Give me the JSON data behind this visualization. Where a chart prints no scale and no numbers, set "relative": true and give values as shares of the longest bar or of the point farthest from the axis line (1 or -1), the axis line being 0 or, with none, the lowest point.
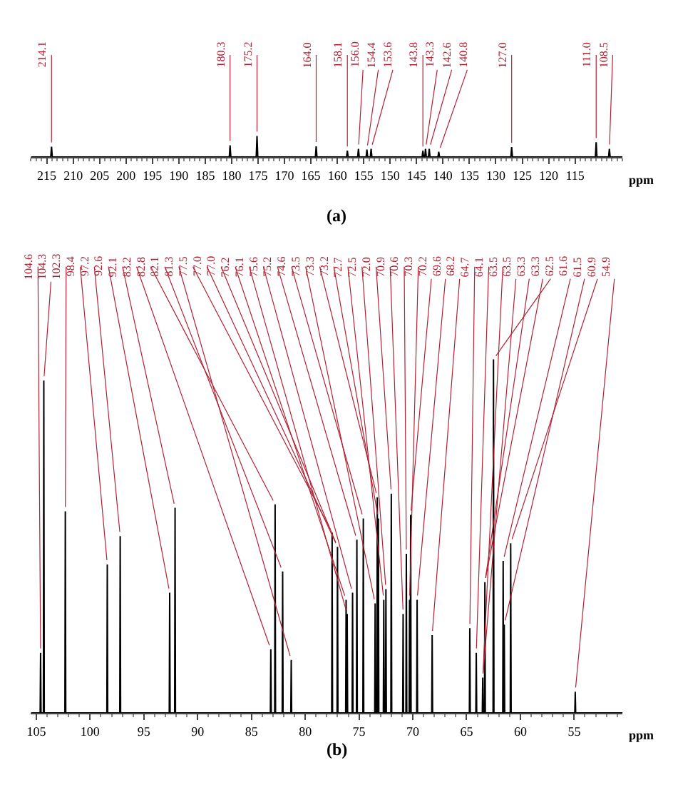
{
  "chart_data": [
    {
      "type": "line",
      "title": "(a)",
      "xlabel": "ppm",
      "relative": true,
      "tick_labels": "x",
      "marker": "none",
      "line_style": "solid",
      "xlim": [
        218,
        106
      ],
      "xticks": [
        215,
        210,
        205,
        200,
        195,
        190,
        185,
        180,
        175,
        170,
        165,
        160,
        155,
        150,
        145,
        140,
        135,
        130,
        125,
        120,
        115
      ],
      "series": [
        {
          "color": "#000000",
          "x": [
            218,
            214.25,
            214.1,
            213.95,
            180.45,
            180.3,
            180.15,
            175.35,
            175.2,
            175.05,
            164.15,
            164.0,
            163.85,
            158.25,
            158.1,
            157.95,
            156.15,
            156.0,
            155.85,
            154.55,
            154.4,
            154.25,
            153.75,
            153.6,
            153.45,
            143.95,
            143.8,
            143.65,
            143.45,
            143.3,
            143.15,
            142.75,
            142.6,
            142.45,
            140.95,
            140.8,
            140.65,
            127.15,
            127.0,
            126.85,
            111.15,
            111.0,
            110.85,
            108.65,
            108.5,
            108.35,
            106
          ],
          "values": [
            0,
            0,
            0.49,
            0,
            0,
            0.56,
            0,
            0,
            1,
            0,
            0,
            0.51,
            0,
            0,
            0.3,
            0,
            0,
            0.39,
            0,
            0,
            0.35,
            0,
            0,
            0.39,
            0,
            0,
            0.3,
            0,
            0,
            0.39,
            0,
            0,
            0.39,
            0,
            0,
            0.25,
            0,
            0,
            0.47,
            0,
            0,
            0.7,
            0,
            0,
            0.39,
            0,
            0
          ]
        }
      ],
      "annotations": [
        {
          "text": "214.1",
          "x": 214.1,
          "y": 0.49
        },
        {
          "text": "180.3",
          "x": 180.3,
          "y": 0.56
        },
        {
          "text": "175.2",
          "x": 175.2,
          "y": 1
        },
        {
          "text": "164.0",
          "x": 164.0,
          "y": 0.51
        },
        {
          "text": "158.1",
          "x": 158.1,
          "y": 0.3
        },
        {
          "text": "156.0",
          "x": 156.0,
          "y": 0.39
        },
        {
          "text": "154.4",
          "x": 154.4,
          "y": 0.35
        },
        {
          "text": "153.6",
          "x": 153.6,
          "y": 0.39
        },
        {
          "text": "143.8",
          "x": 143.8,
          "y": 0.3
        },
        {
          "text": "143.3",
          "x": 143.3,
          "y": 0.39
        },
        {
          "text": "142.6",
          "x": 142.6,
          "y": 0.39
        },
        {
          "text": "140.8",
          "x": 140.8,
          "y": 0.25
        },
        {
          "text": "127.0",
          "x": 127.0,
          "y": 0.47
        },
        {
          "text": "111.0",
          "x": 111.0,
          "y": 0.7
        },
        {
          "text": "108.5",
          "x": 108.5,
          "y": 0.39
        }
      ]
    },
    {
      "type": "line",
      "title": "(b)",
      "xlabel": "ppm",
      "relative": true,
      "tick_labels": "x",
      "marker": "none",
      "line_style": "solid",
      "xlim": [
        105.5,
        50.5
      ],
      "xticks": [
        105,
        100,
        95,
        90,
        85,
        80,
        75,
        70,
        65,
        60,
        55
      ],
      "series": [
        {
          "color": "#000000",
          "x": [
            105.5,
            104.64,
            104.6,
            104.56,
            104.34,
            104.3,
            104.26,
            102.34,
            102.3,
            102.26,
            98.44,
            98.4,
            98.36,
            97.24,
            97.2,
            97.16,
            92.64,
            92.6,
            92.56,
            92.14,
            92.1,
            92.06,
            83.24,
            83.2,
            83.16,
            82.84,
            82.8,
            82.76,
            82.14,
            82.1,
            82.06,
            81.34,
            81.3,
            81.26,
            77.54,
            77.5,
            77.46,
            77.04,
            77.0,
            76.96,
            76.24,
            76.2,
            76.16,
            76.14,
            76.1,
            76.06,
            75.64,
            75.6,
            75.56,
            75.24,
            75.2,
            75.16,
            74.64,
            74.6,
            74.56,
            73.54,
            73.5,
            73.46,
            73.34,
            73.3,
            73.26,
            73.24,
            73.2,
            73.16,
            72.74,
            72.7,
            72.66,
            72.54,
            72.5,
            72.46,
            72.04,
            72.0,
            71.96,
            70.94,
            70.9,
            70.86,
            70.64,
            70.6,
            70.56,
            70.34,
            70.3,
            70.26,
            70.24,
            70.2,
            70.16,
            69.64,
            69.6,
            69.56,
            68.24,
            68.2,
            68.16,
            64.74,
            64.7,
            64.66,
            64.14,
            64.1,
            64.06,
            63.54,
            63.5,
            63.46,
            63.34,
            63.3,
            63.26,
            62.54,
            62.5,
            62.46,
            61.64,
            61.6,
            61.56,
            61.54,
            61.5,
            61.46,
            60.94,
            60.9,
            60.86,
            54.94,
            54.9,
            54.86,
            50.5
          ],
          "values": [
            0,
            0,
            0.17,
            0,
            0,
            0.94,
            0,
            0,
            0.57,
            0,
            0,
            0.42,
            0,
            0,
            0.5,
            0,
            0,
            0.34,
            0,
            0,
            0.58,
            0,
            0,
            0.18,
            0,
            0,
            0.59,
            0,
            0,
            0.4,
            0,
            0,
            0.15,
            0,
            0,
            0.51,
            0,
            0,
            0.47,
            0,
            0,
            0.32,
            0,
            0,
            0.28,
            0,
            0,
            0.34,
            0,
            0,
            0.49,
            0,
            0,
            0.55,
            0,
            0,
            0.31,
            0,
            0,
            0.61,
            0,
            0,
            0.55,
            0,
            0,
            0.32,
            0,
            0,
            0.35,
            0,
            0,
            0.62,
            0,
            0,
            0.28,
            0,
            0,
            0.45,
            0,
            0,
            0.32,
            0,
            0,
            0.56,
            0,
            0,
            0.32,
            0,
            0,
            0.22,
            0,
            0,
            0.24,
            0,
            0,
            0.17,
            0,
            0,
            0.1,
            0,
            0,
            0.37,
            0,
            0,
            1,
            0,
            0,
            0.43,
            0,
            0,
            0.25,
            0,
            0,
            0.48,
            0,
            0,
            0.06,
            0,
            0
          ]
        }
      ],
      "annotations": [
        {
          "text": "104.6",
          "x": 104.6,
          "y": 0.17
        },
        {
          "text": "104.3",
          "x": 104.3,
          "y": 0.94
        },
        {
          "text": "102.3",
          "x": 102.3,
          "y": 0.57
        },
        {
          "text": "98.4",
          "x": 98.4,
          "y": 0.42
        },
        {
          "text": "97.2",
          "x": 97.2,
          "y": 0.5
        },
        {
          "text": "92.6",
          "x": 92.6,
          "y": 0.34
        },
        {
          "text": "92.1",
          "x": 92.1,
          "y": 0.58
        },
        {
          "text": "83.2",
          "x": 83.2,
          "y": 0.18
        },
        {
          "text": "82.8",
          "x": 82.8,
          "y": 0.59
        },
        {
          "text": "82.1",
          "x": 82.1,
          "y": 0.4
        },
        {
          "text": "81.3",
          "x": 81.3,
          "y": 0.15
        },
        {
          "text": "77.5",
          "x": 77.5,
          "y": 0.51
        },
        {
          "text": "77.0",
          "x": 77.0,
          "y": 0.47
        },
        {
          "text": "77.0",
          "x": 77.0,
          "y": 0.47
        },
        {
          "text": "76.2",
          "x": 76.2,
          "y": 0.32
        },
        {
          "text": "76.1",
          "x": 76.1,
          "y": 0.28
        },
        {
          "text": "75.6",
          "x": 75.6,
          "y": 0.34
        },
        {
          "text": "75.2",
          "x": 75.2,
          "y": 0.49
        },
        {
          "text": "74.6",
          "x": 74.6,
          "y": 0.55
        },
        {
          "text": "73.5",
          "x": 73.5,
          "y": 0.31
        },
        {
          "text": "73.3",
          "x": 73.3,
          "y": 0.61
        },
        {
          "text": "73.2",
          "x": 73.2,
          "y": 0.55
        },
        {
          "text": "72.7",
          "x": 72.7,
          "y": 0.32
        },
        {
          "text": "72.5",
          "x": 72.5,
          "y": 0.35
        },
        {
          "text": "72.0",
          "x": 72.0,
          "y": 0.62
        },
        {
          "text": "70.9",
          "x": 70.9,
          "y": 0.28
        },
        {
          "text": "70.6",
          "x": 70.6,
          "y": 0.45
        },
        {
          "text": "70.3",
          "x": 70.3,
          "y": 0.32
        },
        {
          "text": "70.2",
          "x": 70.2,
          "y": 0.56
        },
        {
          "text": "69.6",
          "x": 69.6,
          "y": 0.32
        },
        {
          "text": "68.2",
          "x": 68.2,
          "y": 0.22
        },
        {
          "text": "64.7",
          "x": 64.7,
          "y": 0.24
        },
        {
          "text": "64.1",
          "x": 64.1,
          "y": 0.17
        },
        {
          "text": "63.5",
          "x": 63.5,
          "y": 0.1
        },
        {
          "text": "63.5",
          "x": 63.5,
          "y": 0.1
        },
        {
          "text": "63.3",
          "x": 63.3,
          "y": 0.37
        },
        {
          "text": "63.3",
          "x": 63.3,
          "y": 0.37
        },
        {
          "text": "62.5",
          "x": 62.5,
          "y": 1
        },
        {
          "text": "61.6",
          "x": 61.6,
          "y": 0.43
        },
        {
          "text": "61.5",
          "x": 61.5,
          "y": 0.25
        },
        {
          "text": "60.9",
          "x": 60.9,
          "y": 0.48
        },
        {
          "text": "54.9",
          "x": 54.9,
          "y": 0.06
        }
      ]
    }
  ]
}
